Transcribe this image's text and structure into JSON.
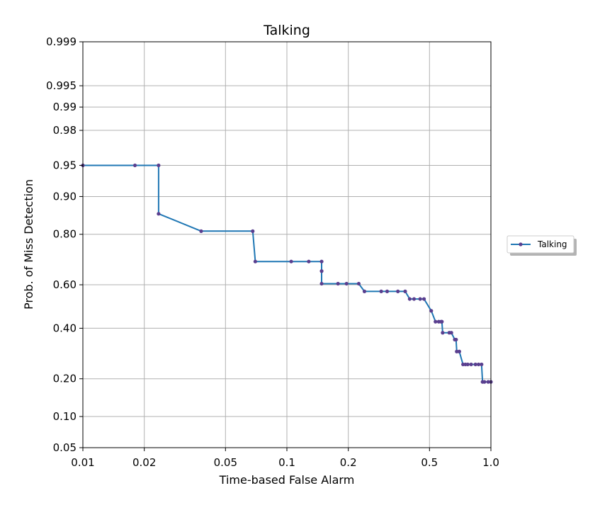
{
  "chart_data": {
    "type": "line",
    "title": "Talking",
    "xlabel": "Time-based False Alarm",
    "ylabel": "Prob. of Miss Detection",
    "x_scale": "log",
    "y_scale": "probit",
    "xlim": [
      0.01,
      1.0
    ],
    "ylim": [
      0.05,
      0.999
    ],
    "x_ticks": [
      0.01,
      0.02,
      0.05,
      0.1,
      0.2,
      0.5,
      1.0
    ],
    "x_tick_labels": [
      "0.01",
      "0.02",
      "0.05",
      "0.1",
      "0.2",
      "0.5",
      "1.0"
    ],
    "y_ticks": [
      0.05,
      0.1,
      0.2,
      0.4,
      0.6,
      0.8,
      0.9,
      0.95,
      0.98,
      0.99,
      0.995,
      0.999
    ],
    "y_tick_labels": [
      "0.05",
      "0.10",
      "0.20",
      "0.40",
      "0.60",
      "0.80",
      "0.90",
      "0.95",
      "0.98",
      "0.99",
      "0.995",
      "0.999"
    ],
    "grid": true,
    "legend_position": "right",
    "series": [
      {
        "name": "Talking",
        "color": "#1f77b4",
        "marker_color": "#5a3f8f",
        "x": [
          0.01,
          0.018,
          0.0235,
          0.0235,
          0.038,
          0.068,
          0.07,
          0.105,
          0.128,
          0.148,
          0.148,
          0.148,
          0.178,
          0.196,
          0.225,
          0.24,
          0.29,
          0.31,
          0.35,
          0.38,
          0.4,
          0.42,
          0.45,
          0.47,
          0.51,
          0.535,
          0.555,
          0.57,
          0.575,
          0.58,
          0.625,
          0.64,
          0.665,
          0.675,
          0.68,
          0.7,
          0.73,
          0.75,
          0.77,
          0.8,
          0.84,
          0.87,
          0.9,
          0.91,
          0.93,
          0.97,
          1.0
        ],
        "y": [
          0.95,
          0.95,
          0.95,
          0.86,
          0.81,
          0.81,
          0.7,
          0.7,
          0.7,
          0.7,
          0.66,
          0.605,
          0.605,
          0.605,
          0.605,
          0.57,
          0.57,
          0.57,
          0.57,
          0.57,
          0.535,
          0.535,
          0.535,
          0.535,
          0.48,
          0.43,
          0.43,
          0.43,
          0.43,
          0.38,
          0.38,
          0.38,
          0.35,
          0.35,
          0.3,
          0.3,
          0.25,
          0.25,
          0.25,
          0.25,
          0.25,
          0.25,
          0.25,
          0.19,
          0.19,
          0.19,
          0.19
        ]
      }
    ]
  }
}
